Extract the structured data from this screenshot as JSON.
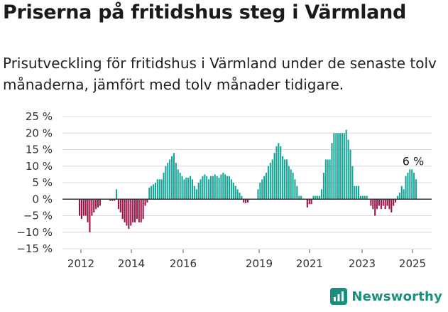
{
  "title": "Priserna på fritidshus steg i Värmland",
  "subtitle": "Prisutveckling för fritidshus i Värmland under de senaste tolv månaderna, jämfört med tolv månader tidigare.",
  "brand": {
    "name": "Newsworthy",
    "icon": "newsworthy-logo-icon"
  },
  "colors": {
    "positive": "#17a596",
    "negative": "#9b1248",
    "grid": "#d8d8d8",
    "zero": "#333333"
  },
  "chart_data": {
    "type": "bar",
    "ylim": [
      -15,
      25
    ],
    "yticks": [
      {
        "value": 25,
        "label": "25 %"
      },
      {
        "value": 20,
        "label": "20 %"
      },
      {
        "value": 15,
        "label": "15 %"
      },
      {
        "value": 10,
        "label": "10 %"
      },
      {
        "value": 5,
        "label": "5 %"
      },
      {
        "value": 0,
        "label": "0 %"
      },
      {
        "value": -5,
        "label": "−5 %"
      },
      {
        "value": -10,
        "label": "−10 %"
      },
      {
        "value": -15,
        "label": "−15 %"
      }
    ],
    "xticks": [
      "2012",
      "2014",
      "2016",
      "2019",
      "2021",
      "2023",
      "2025"
    ],
    "annotation": {
      "text": "6 %",
      "value": 6
    },
    "values": [
      -5,
      -6,
      -5,
      -5,
      -7,
      -10,
      -5,
      -4,
      -3,
      -2.5,
      -2,
      null,
      null,
      null,
      null,
      -0.5,
      -0.5,
      -0.5,
      3,
      -3,
      -4,
      -6,
      -7,
      -8,
      -9,
      -8,
      -7,
      -7,
      -6,
      -7,
      -7,
      -6,
      -2,
      -1,
      3.5,
      4,
      4.5,
      5,
      6,
      6,
      6,
      8,
      10,
      11,
      12,
      13,
      14,
      11,
      9,
      8,
      7,
      6,
      6.5,
      6.5,
      7,
      6,
      4,
      3,
      5,
      6,
      7,
      7.5,
      7,
      6,
      7,
      7,
      7.5,
      7,
      6.5,
      7.5,
      8,
      7.5,
      7,
      7,
      6,
      5,
      4,
      3,
      2,
      1,
      -1,
      -1.2,
      -1,
      null,
      null,
      null,
      null,
      3,
      5,
      6,
      7,
      8,
      10,
      11,
      12,
      14,
      16,
      17,
      16,
      13,
      12,
      12,
      10,
      9,
      8,
      6,
      4,
      1,
      1,
      null,
      null,
      -2.5,
      -1.5,
      -1.5,
      1,
      1,
      1,
      1,
      3,
      8,
      12,
      12,
      12,
      17,
      20,
      20,
      20,
      20,
      20,
      20,
      21,
      18,
      15,
      10,
      4,
      4,
      4,
      1,
      1,
      1,
      1,
      null,
      -2,
      -3,
      -5,
      -3,
      -2,
      -3,
      -2,
      -3,
      -2,
      -3,
      -4,
      -2,
      -1,
      1,
      2,
      4,
      3,
      7,
      8,
      9,
      9,
      8,
      6
    ]
  }
}
